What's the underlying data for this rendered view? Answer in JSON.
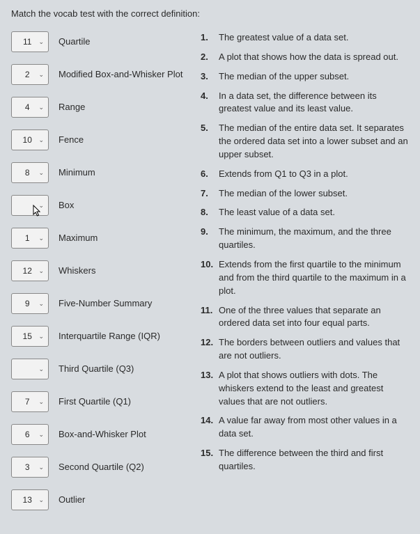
{
  "header": "Match the vocab test with the correct definition:",
  "terms": [
    {
      "value": "11",
      "label": "Quartile"
    },
    {
      "value": "2",
      "label": "Modified Box-and-Whisker Plot"
    },
    {
      "value": "4",
      "label": "Range"
    },
    {
      "value": "10",
      "label": "Fence"
    },
    {
      "value": "8",
      "label": "Minimum"
    },
    {
      "value": "",
      "label": "Box",
      "cursor": true
    },
    {
      "value": "1",
      "label": "Maximum"
    },
    {
      "value": "12",
      "label": "Whiskers"
    },
    {
      "value": "9",
      "label": "Five-Number Summary"
    },
    {
      "value": "15",
      "label": "Interquartile Range (IQR)"
    },
    {
      "value": "",
      "label": "Third Quartile (Q3)"
    },
    {
      "value": "7",
      "label": "First Quartile (Q1)"
    },
    {
      "value": "6",
      "label": "Box-and-Whisker Plot"
    },
    {
      "value": "3",
      "label": "Second Quartile (Q2)"
    },
    {
      "value": "13",
      "label": "Outlier"
    }
  ],
  "definitions": [
    {
      "num": "1.",
      "text": "The greatest value of a data set."
    },
    {
      "num": "2.",
      "text": "A plot that shows how the data is spread out."
    },
    {
      "num": "3.",
      "text": "The median of the upper subset."
    },
    {
      "num": "4.",
      "text": "In a data set, the difference between its greatest value and its least value."
    },
    {
      "num": "5.",
      "text": "The median of the entire data set. It separates the ordered data set into a lower subset and an upper subset."
    },
    {
      "num": "6.",
      "text": "Extends from Q1 to Q3 in a plot."
    },
    {
      "num": "7.",
      "text": "The median of the lower subset."
    },
    {
      "num": "8.",
      "text": "The least value of a data set."
    },
    {
      "num": "9.",
      "text": "The minimum, the maximum, and the three quartiles."
    },
    {
      "num": "10.",
      "text": "Extends from the first quartile to the minimum and from the third quartile to the maximum in a plot."
    },
    {
      "num": "11.",
      "text": "One of the three values that separate an ordered data set into four equal parts."
    },
    {
      "num": "12.",
      "text": "The borders between outliers and values that are not outliers."
    },
    {
      "num": "13.",
      "text": "A plot that shows outliers with dots.  The whiskers extend to the least and greatest values that are not outliers."
    },
    {
      "num": "14.",
      "text": "A value far away from most other values in a data set."
    },
    {
      "num": "15.",
      "text": "The difference between the third and first quartiles."
    }
  ]
}
